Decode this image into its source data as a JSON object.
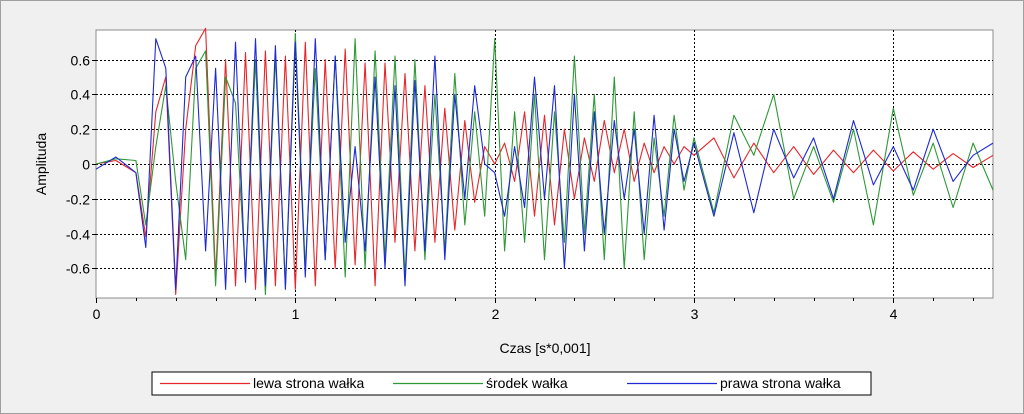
{
  "chart_data": {
    "type": "line",
    "title": "",
    "xlabel": "Czas [s*0,001]",
    "ylabel": "Amplituda",
    "xlim": [
      0,
      4.5
    ],
    "ylim": [
      -0.77,
      0.77
    ],
    "x_ticks": [
      0,
      1,
      2,
      3,
      4
    ],
    "x_tick_labels": [
      "0",
      "1",
      "2",
      "3",
      "4"
    ],
    "y_ticks": [
      0.6,
      0.4,
      0.2,
      0,
      -0.2,
      -0.4,
      -0.6
    ],
    "y_tick_labels": [
      "0.6",
      "0.4",
      "0.2",
      "0",
      "-0.2",
      "-0.4",
      "-0.6"
    ],
    "grid": true,
    "legend_position": "bottom",
    "series": [
      {
        "name": "lewa strona wałka",
        "color": "#e8262b",
        "x": [
          0,
          0.1,
          0.2,
          0.25,
          0.3,
          0.35,
          0.4,
          0.45,
          0.5,
          0.55,
          0.6,
          0.65,
          0.7,
          0.75,
          0.8,
          0.85,
          0.9,
          0.95,
          1.0,
          1.05,
          1.1,
          1.15,
          1.2,
          1.25,
          1.3,
          1.35,
          1.4,
          1.45,
          1.5,
          1.55,
          1.6,
          1.65,
          1.7,
          1.75,
          1.8,
          1.85,
          1.9,
          1.95,
          2.0,
          2.05,
          2.1,
          2.15,
          2.2,
          2.25,
          2.3,
          2.35,
          2.4,
          2.45,
          2.5,
          2.55,
          2.6,
          2.65,
          2.7,
          2.75,
          2.8,
          2.85,
          2.9,
          2.95,
          3.0,
          3.1,
          3.2,
          3.3,
          3.4,
          3.5,
          3.6,
          3.7,
          3.8,
          3.9,
          4.0,
          4.1,
          4.2,
          4.3,
          4.4,
          4.5
        ],
        "y": [
          0.0,
          0.02,
          -0.05,
          -0.42,
          0.3,
          0.5,
          -0.75,
          0.2,
          0.68,
          0.78,
          -0.65,
          0.6,
          -0.7,
          0.64,
          -0.72,
          0.65,
          -0.7,
          0.62,
          -0.72,
          0.7,
          -0.7,
          0.6,
          -0.6,
          0.66,
          -0.58,
          0.58,
          -0.7,
          0.58,
          -0.45,
          0.52,
          -0.5,
          0.45,
          -0.45,
          0.32,
          -0.38,
          0.25,
          -0.22,
          0.1,
          0.0,
          0.12,
          -0.1,
          0.3,
          -0.3,
          0.28,
          -0.35,
          0.2,
          -0.2,
          0.15,
          -0.1,
          0.25,
          -0.05,
          0.2,
          -0.1,
          0.12,
          -0.05,
          0.1,
          0.0,
          0.1,
          0.05,
          0.15,
          -0.08,
          0.12,
          -0.05,
          0.1,
          -0.06,
          0.08,
          -0.05,
          0.08,
          -0.04,
          0.07,
          -0.03,
          0.06,
          -0.02,
          0.05
        ]
      },
      {
        "name": "środek wałka",
        "color": "#2e9a36",
        "x": [
          0,
          0.1,
          0.2,
          0.25,
          0.3,
          0.35,
          0.4,
          0.45,
          0.5,
          0.55,
          0.6,
          0.65,
          0.7,
          0.75,
          0.8,
          0.85,
          0.9,
          0.95,
          1.0,
          1.05,
          1.1,
          1.15,
          1.2,
          1.25,
          1.3,
          1.35,
          1.4,
          1.45,
          1.5,
          1.55,
          1.6,
          1.65,
          1.7,
          1.75,
          1.8,
          1.85,
          1.9,
          1.95,
          2.0,
          2.05,
          2.1,
          2.15,
          2.2,
          2.25,
          2.3,
          2.35,
          2.4,
          2.45,
          2.5,
          2.55,
          2.6,
          2.65,
          2.7,
          2.75,
          2.8,
          2.85,
          2.9,
          2.95,
          3.0,
          3.1,
          3.2,
          3.3,
          3.4,
          3.5,
          3.6,
          3.7,
          3.8,
          3.9,
          4.0,
          4.1,
          4.2,
          4.3,
          4.4,
          4.5
        ],
        "y": [
          0.0,
          0.03,
          0.02,
          -0.35,
          0.1,
          0.45,
          -0.1,
          -0.55,
          0.55,
          0.65,
          -0.7,
          0.5,
          0.35,
          -0.65,
          0.6,
          -0.75,
          0.62,
          -0.7,
          0.75,
          -0.6,
          0.55,
          -0.55,
          0.62,
          -0.65,
          0.72,
          -0.6,
          0.65,
          -0.55,
          0.62,
          -0.65,
          0.6,
          -0.55,
          0.4,
          -0.5,
          0.52,
          -0.35,
          0.3,
          -0.3,
          0.72,
          -0.5,
          0.3,
          -0.45,
          0.4,
          -0.55,
          0.3,
          -0.45,
          0.62,
          -0.4,
          0.4,
          -0.55,
          0.5,
          -0.6,
          0.3,
          -0.55,
          0.15,
          -0.3,
          0.28,
          -0.15,
          0.15,
          -0.28,
          0.28,
          0.05,
          0.4,
          -0.2,
          0.1,
          -0.22,
          0.2,
          -0.35,
          0.32,
          -0.18,
          0.12,
          -0.25,
          0.12,
          -0.15
        ]
      },
      {
        "name": "prawa strona wałka",
        "color": "#1e2ad6",
        "x": [
          0,
          0.1,
          0.2,
          0.25,
          0.3,
          0.35,
          0.4,
          0.45,
          0.5,
          0.55,
          0.6,
          0.65,
          0.7,
          0.75,
          0.8,
          0.85,
          0.9,
          0.95,
          1.0,
          1.05,
          1.1,
          1.15,
          1.2,
          1.25,
          1.3,
          1.35,
          1.4,
          1.45,
          1.5,
          1.55,
          1.6,
          1.65,
          1.7,
          1.75,
          1.8,
          1.85,
          1.9,
          1.95,
          2.0,
          2.05,
          2.1,
          2.15,
          2.2,
          2.25,
          2.3,
          2.35,
          2.4,
          2.45,
          2.5,
          2.55,
          2.6,
          2.65,
          2.7,
          2.75,
          2.8,
          2.85,
          2.9,
          2.95,
          3.0,
          3.1,
          3.2,
          3.3,
          3.4,
          3.5,
          3.6,
          3.7,
          3.8,
          3.9,
          4.0,
          4.1,
          4.2,
          4.3,
          4.4,
          4.5
        ],
        "y": [
          -0.03,
          0.04,
          -0.05,
          -0.48,
          0.72,
          0.55,
          -0.72,
          0.5,
          0.62,
          -0.5,
          0.55,
          -0.72,
          0.7,
          -0.68,
          0.72,
          -0.7,
          0.68,
          -0.72,
          0.7,
          -0.65,
          0.72,
          -0.55,
          0.62,
          -0.45,
          0.1,
          -0.5,
          0.5,
          -0.6,
          0.45,
          -0.7,
          0.48,
          -0.5,
          0.62,
          -0.55,
          0.4,
          -0.2,
          0.45,
          0.0,
          -0.05,
          -0.3,
          0.1,
          -0.25,
          0.5,
          -0.2,
          0.45,
          -0.6,
          0.4,
          -0.5,
          0.3,
          -0.4,
          0.25,
          -0.2,
          0.2,
          -0.4,
          0.28,
          -0.38,
          0.2,
          -0.1,
          0.12,
          -0.3,
          0.18,
          -0.28,
          0.2,
          -0.08,
          0.15,
          -0.2,
          0.25,
          -0.12,
          0.1,
          -0.15,
          0.2,
          -0.1,
          0.05,
          0.12
        ]
      }
    ]
  }
}
